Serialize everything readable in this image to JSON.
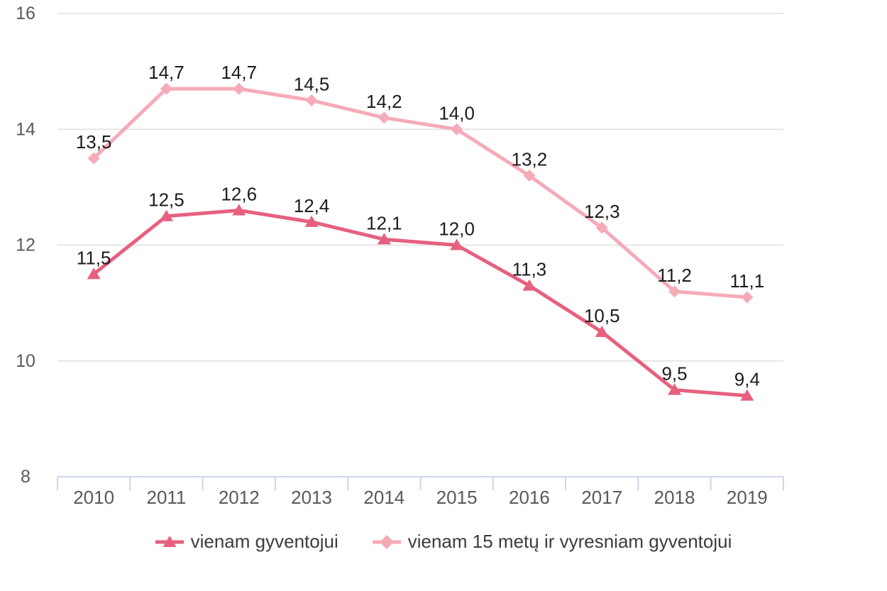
{
  "chart_data": {
    "type": "line",
    "title": "",
    "xlabel": "",
    "ylabel": "",
    "categories": [
      "2010",
      "2011",
      "2012",
      "2013",
      "2014",
      "2015",
      "2016",
      "2017",
      "2018",
      "2019"
    ],
    "series": [
      {
        "name": "vienam gyventojui",
        "color": "#e7607f",
        "marker": "triangle",
        "values": [
          11.5,
          12.5,
          12.6,
          12.4,
          12.1,
          12.0,
          11.3,
          10.5,
          9.5,
          9.4
        ],
        "labels": [
          "11,5",
          "12,5",
          "12,6",
          "12,4",
          "12,1",
          "12,0",
          "11,3",
          "10,5",
          "9,5",
          "9,4"
        ]
      },
      {
        "name": "vienam 15 metų ir vyresniam gyventojui",
        "color": "#f6aab8",
        "marker": "diamond",
        "values": [
          13.5,
          14.7,
          14.7,
          14.5,
          14.2,
          14.0,
          13.2,
          12.3,
          11.2,
          11.1
        ],
        "labels": [
          "13,5",
          "14,7",
          "14,7",
          "14,5",
          "14,2",
          "14,0",
          "13,2",
          "12,3",
          "11,2",
          "11,1"
        ]
      }
    ],
    "yticks": [
      8,
      10,
      12,
      14,
      16
    ],
    "ytick_labels": [
      "8",
      "10",
      "12",
      "14",
      "16"
    ],
    "ylim": [
      8,
      16
    ],
    "grid": true,
    "legend_position": "bottom"
  },
  "colors": {
    "axis_line": "#ccd6eb",
    "gridline": "#e6e6e6",
    "axis_label": "#595959",
    "data_label": "#1c1c1c",
    "legend_text": "#3c3c3c",
    "background": "#ffffff"
  }
}
